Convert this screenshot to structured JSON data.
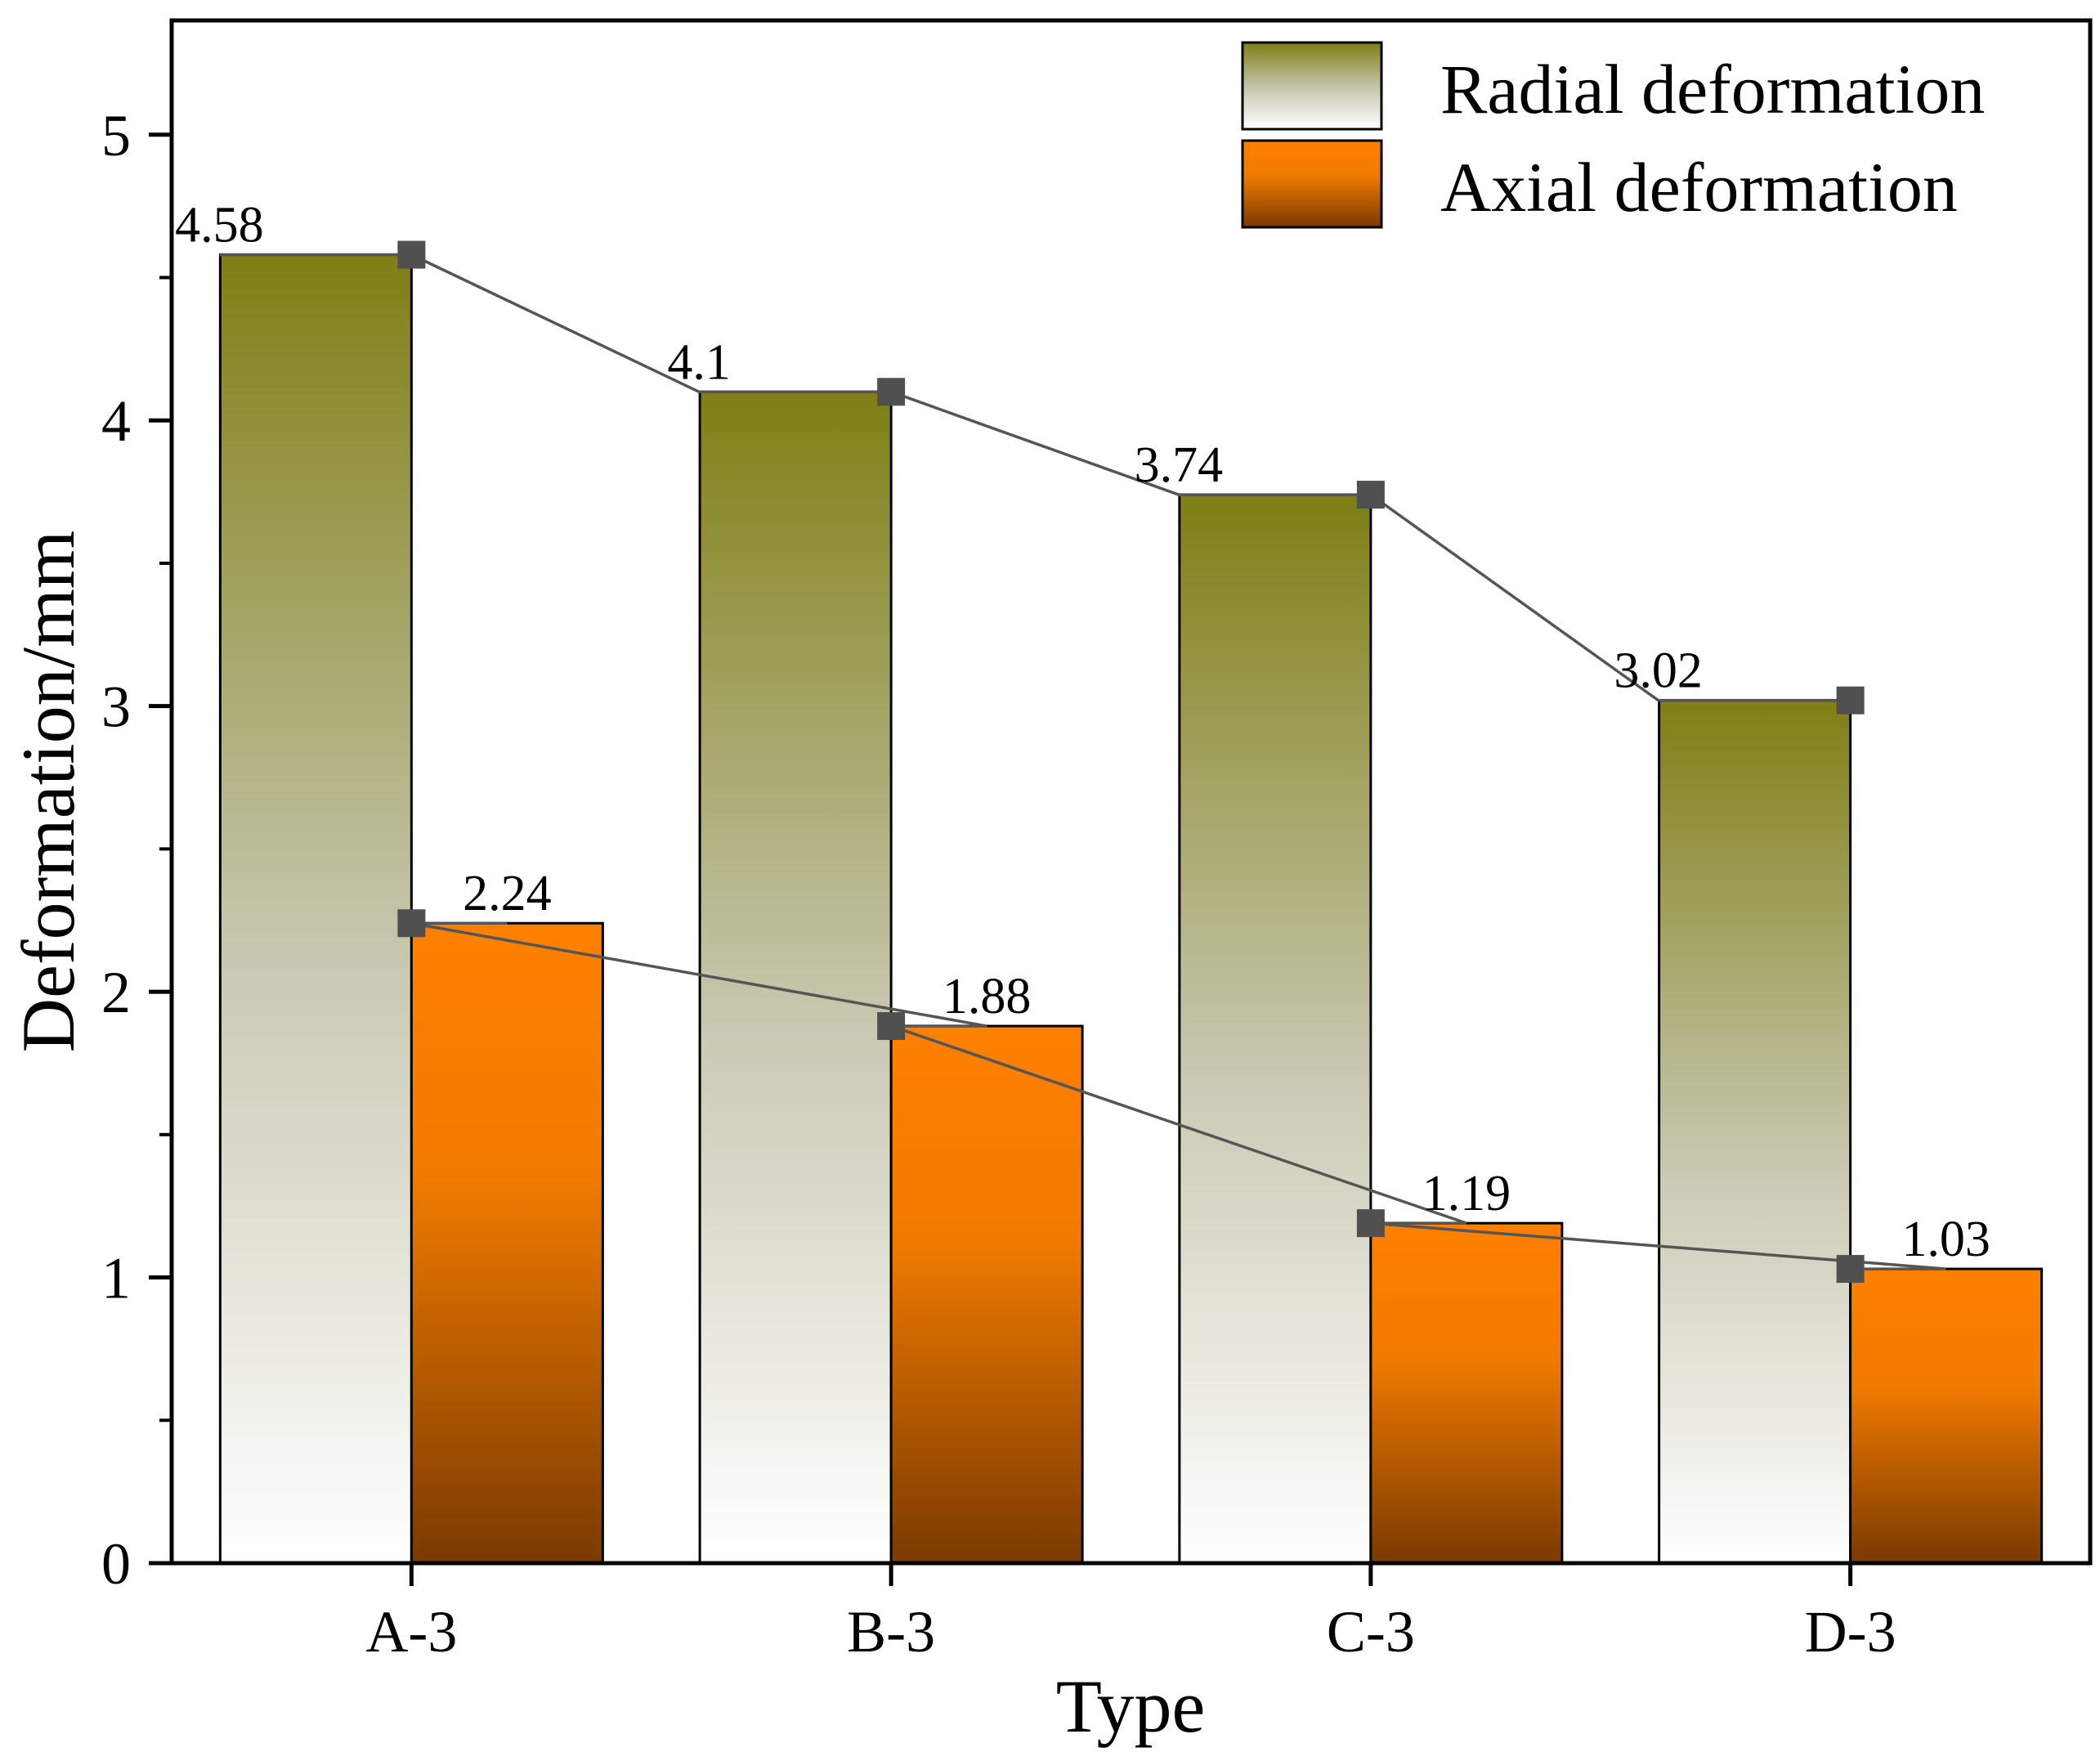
{
  "chart_data": {
    "type": "bar",
    "title": "",
    "xlabel": "Type",
    "ylabel": "Deformation/mm",
    "categories": [
      "A-3",
      "B-3",
      "C-3",
      "D-3"
    ],
    "ylim": [
      0,
      5.4
    ],
    "yticks": [
      0,
      1,
      2,
      3,
      4,
      5
    ],
    "series": [
      {
        "name": "Radial deformation",
        "values": [
          4.58,
          4.1,
          3.74,
          3.02
        ],
        "labels": [
          "4.58",
          "4.1",
          "3.74",
          "3.02"
        ],
        "color_top": "#7F7F15",
        "color_bottom": "#FFFFFF"
      },
      {
        "name": "Axial deformation",
        "values": [
          2.24,
          1.88,
          1.19,
          1.03
        ],
        "labels": [
          "2.24",
          "1.88",
          "1.19",
          "1.03"
        ],
        "color_top": "#FF8000",
        "color_bottom": "#7A3A00"
      }
    ],
    "trend_lines": true,
    "marker_color": "#505050",
    "legend_position": "top-right",
    "grid": false
  }
}
